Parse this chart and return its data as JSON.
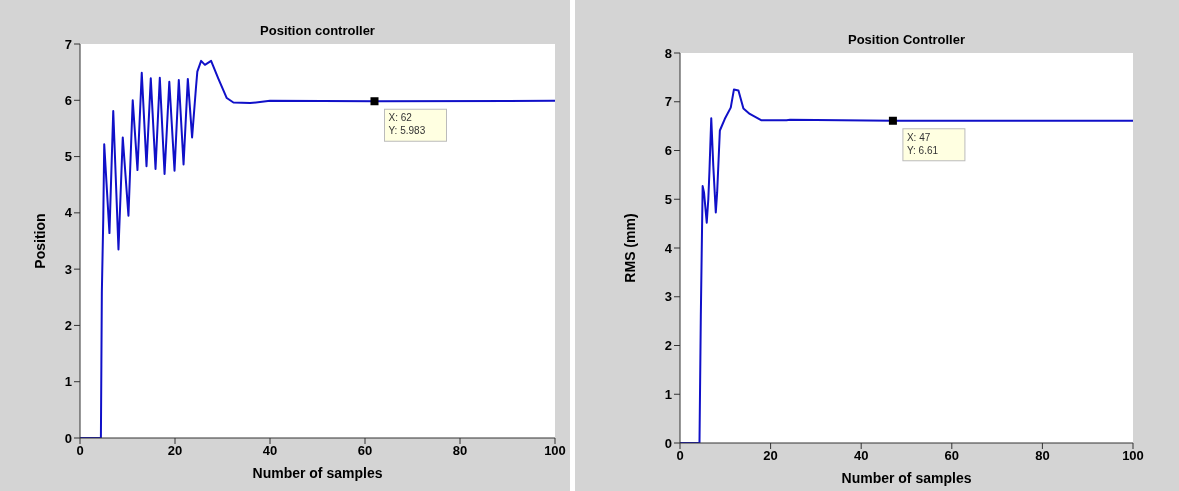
{
  "chart_data": [
    {
      "type": "line",
      "title": "Position controller",
      "xlabel": "Number of samples",
      "ylabel": "Position",
      "xlim": [
        0,
        100
      ],
      "xticks": [
        0,
        20,
        40,
        60,
        80,
        100
      ],
      "ylim": [
        0,
        7
      ],
      "yticks": [
        0,
        1,
        2,
        3,
        4,
        5,
        6,
        7
      ],
      "grid": false,
      "marker": "none",
      "line_style": "solid",
      "x": [
        0,
        4.4,
        4.5,
        4.6,
        4.9,
        5.1,
        6.2,
        7.0,
        8.1,
        9.0,
        10.2,
        11.1,
        12.1,
        13.0,
        14.0,
        14.9,
        15.9,
        16.8,
        17.8,
        18.8,
        19.9,
        20.8,
        21.8,
        22.7,
        23.6,
        24.4,
        24.7,
        25.5,
        26.3,
        27.6,
        29.1,
        30.9,
        32.3,
        35.8,
        40,
        62,
        100
      ],
      "series": [
        {
          "color": "#1010c8",
          "values": [
            0,
            0,
            1.3,
            2.6,
            3.9,
            5.22,
            3.64,
            5.81,
            3.35,
            5.34,
            3.95,
            6.0,
            4.76,
            6.49,
            4.83,
            6.39,
            4.78,
            6.4,
            4.69,
            6.33,
            4.75,
            6.36,
            4.86,
            6.38,
            5.34,
            6.21,
            6.51,
            6.7,
            6.63,
            6.7,
            6.39,
            6.04,
            5.96,
            5.95,
            5.99,
            5.983,
            5.99
          ]
        }
      ],
      "annotations": [
        {
          "text": "X: 62\nY: 5.983",
          "x": 62,
          "y": 5.983
        }
      ]
    },
    {
      "type": "line",
      "title": "Position Controller",
      "xlabel": "Number of samples",
      "ylabel": "RMS (mm)",
      "xlim": [
        0,
        100
      ],
      "xticks": [
        0,
        20,
        40,
        60,
        80,
        100
      ],
      "ylim": [
        0,
        8
      ],
      "yticks": [
        0,
        1,
        2,
        3,
        4,
        5,
        6,
        7,
        8
      ],
      "grid": false,
      "marker": "none",
      "line_style": "solid",
      "x": [
        0,
        4.3,
        4.6,
        4.8,
        5.0,
        5.3,
        5.9,
        6.25,
        6.5,
        6.9,
        7.35,
        7.9,
        8.2,
        8.8,
        9.9,
        11.2,
        11.9,
        12.9,
        14.0,
        15.4,
        18.0,
        23.5,
        24.3,
        47,
        100
      ],
      "series": [
        {
          "color": "#1010c8",
          "values": [
            0,
            0,
            2.64,
            3.97,
            5.27,
            5.14,
            4.52,
            5.0,
            5.58,
            6.66,
            5.68,
            4.73,
            5.14,
            6.41,
            6.65,
            6.88,
            7.25,
            7.23,
            6.86,
            6.75,
            6.62,
            6.62,
            6.63,
            6.61,
            6.61
          ]
        }
      ],
      "annotations": [
        {
          "text": "X: 47\nY: 6.61",
          "x": 47,
          "y": 6.61
        }
      ]
    }
  ]
}
